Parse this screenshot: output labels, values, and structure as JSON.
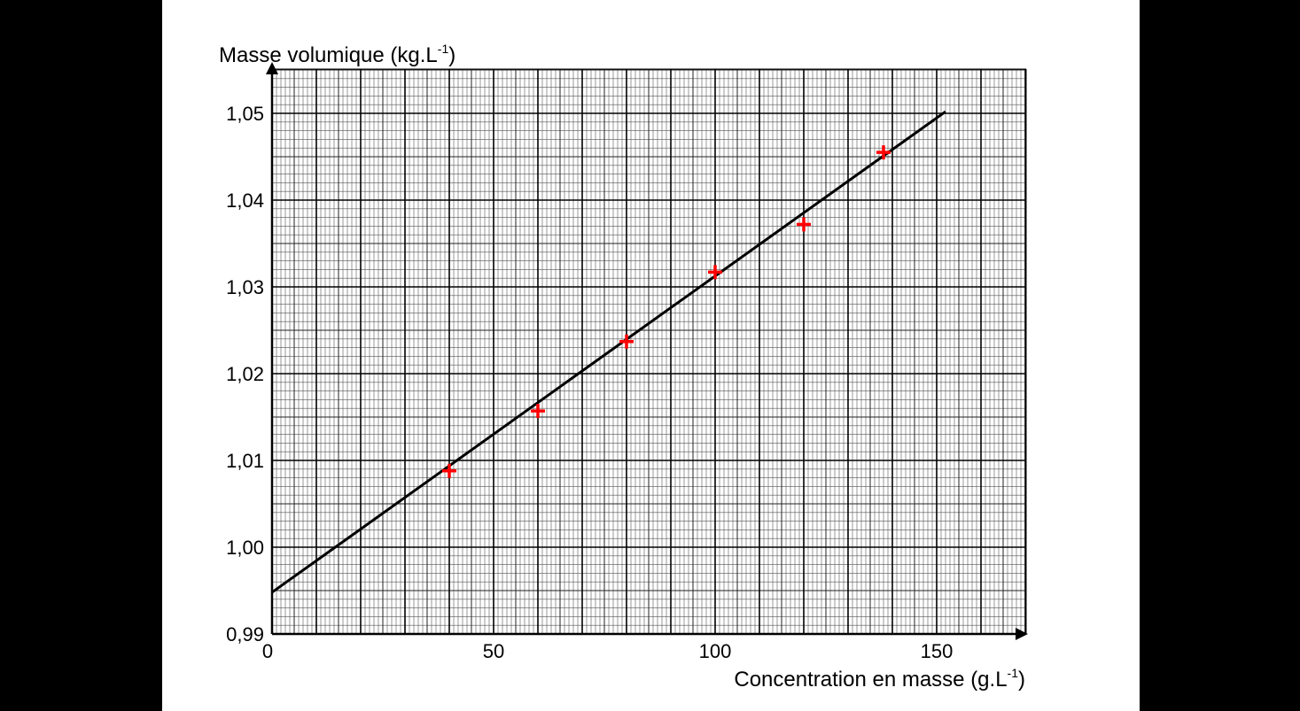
{
  "chart_data": {
    "type": "scatter",
    "title": "",
    "ylabel": {
      "prefix": "Masse volumique (kg.L",
      "sup": "-1",
      "suffix": ")"
    },
    "xlabel": {
      "prefix": "Concentration en masse (g.L",
      "sup": "-1",
      "suffix": ")"
    },
    "xlim": [
      0,
      165
    ],
    "ylim": [
      0.99,
      1.0545
    ],
    "x_ticks": [
      0,
      50,
      100,
      150
    ],
    "x_tick_labels": [
      "0",
      "50",
      "100",
      "150"
    ],
    "y_ticks": [
      0.99,
      1.0,
      1.01,
      1.02,
      1.03,
      1.04,
      1.05
    ],
    "y_tick_labels": [
      "0,99",
      "1,00",
      "1,01",
      "1,02",
      "1,03",
      "1,04",
      "1,05"
    ],
    "grid": true,
    "series": [
      {
        "marker": "plus",
        "color": "#ff0000",
        "points": [
          {
            "x": 40,
            "y": 1.0088
          },
          {
            "x": 60,
            "y": 1.0157
          },
          {
            "x": 80,
            "y": 1.0237
          },
          {
            "x": 100,
            "y": 1.0317
          },
          {
            "x": 120,
            "y": 1.0372
          },
          {
            "x": 138,
            "y": 1.0455
          }
        ]
      }
    ],
    "trendline": {
      "x": [
        0,
        152
      ],
      "y": [
        0.9948,
        1.0502
      ],
      "color": "#000000"
    }
  }
}
